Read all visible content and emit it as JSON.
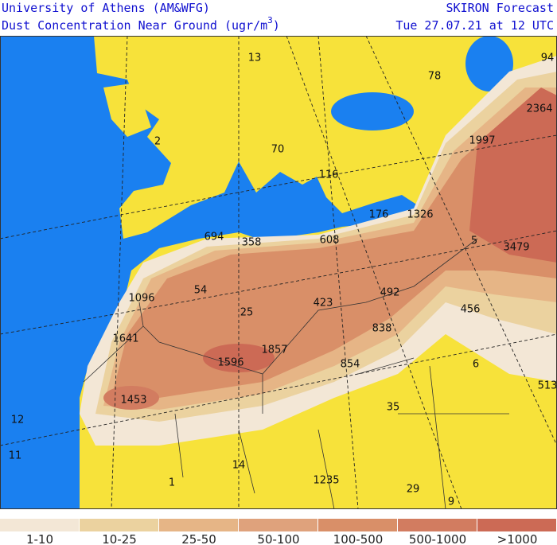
{
  "header": {
    "institution": "University of Athens (AM&WFG)",
    "product": "SKIRON Forecast",
    "title": "Dust Concentration Near Ground (ugr/m",
    "title_sup": "3",
    "title_end": ")",
    "valid_time": "Tue 27.07.21 at 12 UTC"
  },
  "map": {
    "labels": [
      13,
      78,
      94,
      2364,
      1997,
      2,
      70,
      116,
      176,
      1326,
      694,
      358,
      608,
      5,
      3479,
      1096,
      54,
      492,
      423,
      25,
      456,
      838,
      1641,
      1857,
      1596,
      854,
      6,
      513,
      1453,
      35,
      12,
      11,
      14,
      1,
      1235,
      29,
      9
    ]
  },
  "legend": {
    "bins": [
      {
        "label": "1-10",
        "color": "#f3e7d6"
      },
      {
        "label": "10-25",
        "color": "#ebd29f"
      },
      {
        "label": "25-50",
        "color": "#e6b586"
      },
      {
        "label": "50-100",
        "color": "#dfa27c"
      },
      {
        "label": "100-500",
        "color": "#d98f68"
      },
      {
        "label": "500-1000",
        "color": "#d27c60"
      },
      {
        "label": ">1000",
        "color": "#cc6a55"
      }
    ]
  }
}
